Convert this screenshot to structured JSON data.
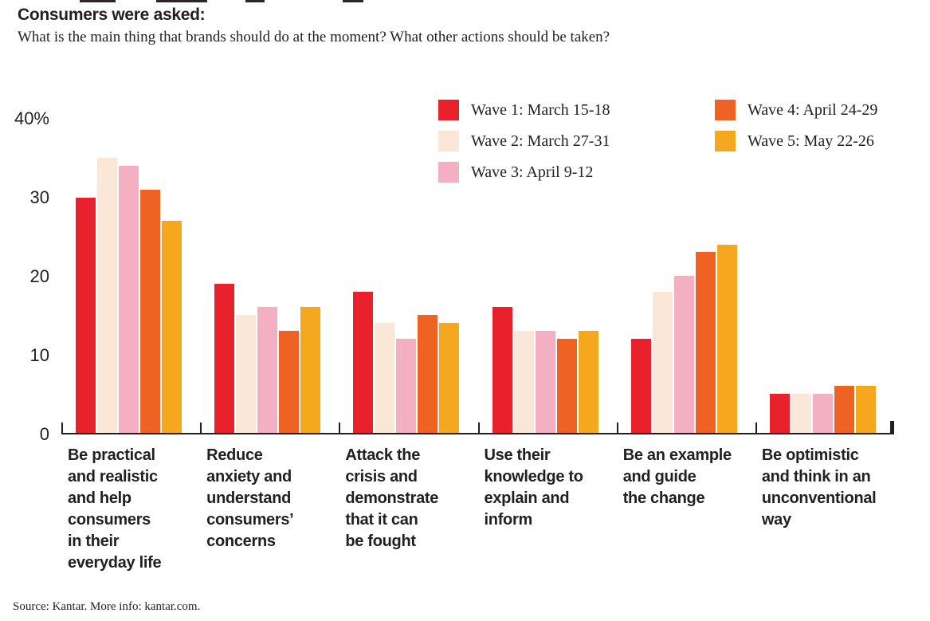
{
  "header": {
    "title": "Consumers were asked:",
    "subtitle": "What is the main thing that brands should do at the moment? What other actions should be taken?"
  },
  "legend": {
    "items": [
      {
        "label": "Wave 1: March 15-18",
        "color": "#e8212c"
      },
      {
        "label": "Wave 2: March 27-31",
        "color": "#fae7d8"
      },
      {
        "label": "Wave 3: April 9-12",
        "color": "#f3b0c2"
      },
      {
        "label": "Wave 4: April 24-29",
        "color": "#ee6223"
      },
      {
        "label": "Wave 5: May 22-26",
        "color": "#f5a81e"
      }
    ]
  },
  "chart_data": {
    "type": "bar",
    "title": "Consumers were asked: What is the main thing that brands should do at the moment? What other actions should be taken?",
    "categories": [
      "Be practical and realistic and help consumers in their everyday life",
      "Reduce anxiety and understand consumers’ concerns",
      "Attack the crisis and demonstrate that it can be fought",
      "Use their knowledge to explain and inform",
      "Be an example and guide the change",
      "Be optimistic and think in an unconventional way"
    ],
    "category_lines": [
      [
        "Be practical",
        "and realistic",
        "and help",
        "consumers",
        "in their",
        "everyday life"
      ],
      [
        "Reduce",
        "anxiety and",
        "understand",
        "consumers’",
        "concerns"
      ],
      [
        "Attack the",
        "crisis and",
        "demonstrate",
        "that it can",
        "be fought"
      ],
      [
        "Use their",
        "knowledge to",
        "explain and",
        "inform"
      ],
      [
        "Be an example",
        "and guide",
        "the change"
      ],
      [
        "Be optimistic",
        "and think in an",
        "unconventional",
        "way"
      ]
    ],
    "series": [
      {
        "name": "Wave 1: March 15-18",
        "color": "#e8212c",
        "values": [
          30,
          19,
          18,
          16,
          12,
          5
        ]
      },
      {
        "name": "Wave 2: March 27-31",
        "color": "#fae7d8",
        "values": [
          35,
          15,
          14,
          13,
          18,
          5
        ]
      },
      {
        "name": "Wave 3: April 9-12",
        "color": "#f3b0c2",
        "values": [
          34,
          16,
          12,
          13,
          20,
          5
        ]
      },
      {
        "name": "Wave 4: April 24-29",
        "color": "#ee6223",
        "values": [
          31,
          13,
          15,
          12,
          23,
          6
        ]
      },
      {
        "name": "Wave 5: May 22-26",
        "color": "#f5a81e",
        "values": [
          27,
          16,
          14,
          13,
          24,
          6
        ]
      }
    ],
    "xlabel": "",
    "ylabel": "",
    "ylim": [
      0,
      40
    ],
    "y_ticks": [
      "40%",
      "30",
      "20",
      "10",
      "0"
    ],
    "grid": false,
    "legend_position": "top"
  },
  "footer": {
    "source": "Source: Kantar. More info: kantar.com."
  }
}
